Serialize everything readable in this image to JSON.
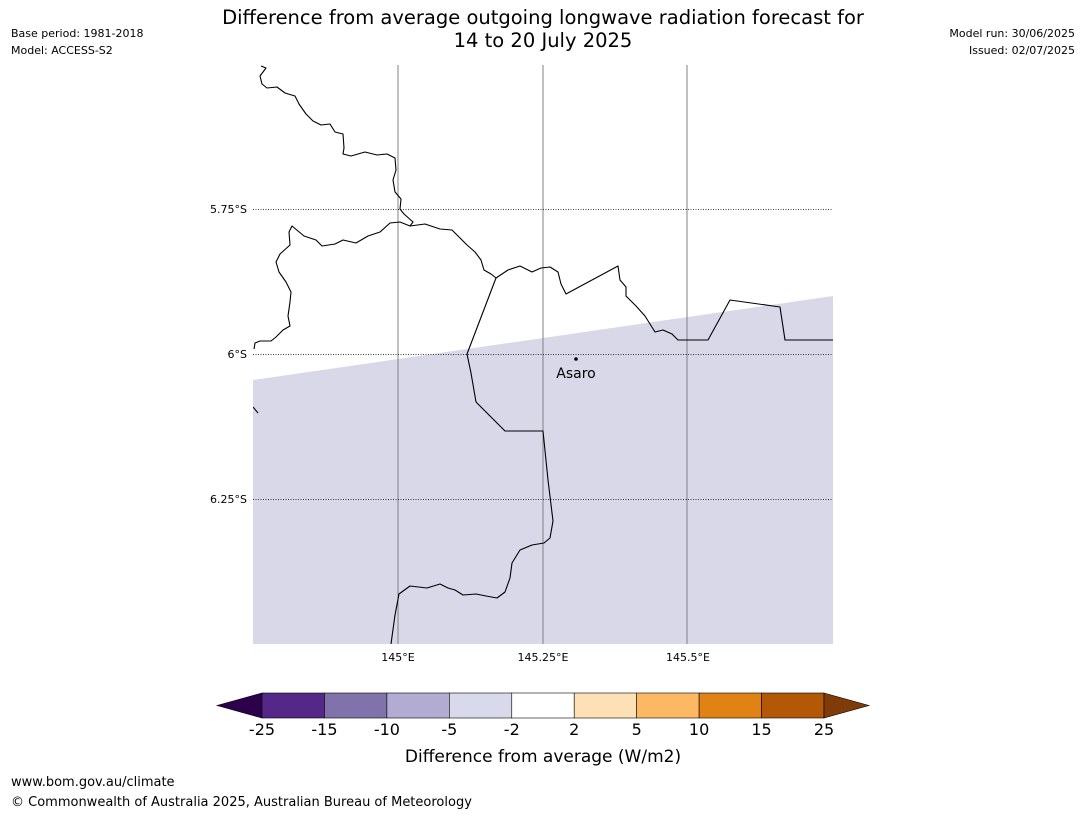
{
  "header": {
    "title_line1": "Difference from average outgoing longwave radiation forecast for",
    "title_line2": "14 to 20 July 2025",
    "base_period": "Base period: 1981-2018",
    "model": "Model: ACCESS-S2",
    "model_run": "Model run: 30/06/2025",
    "issued": "Issued: 02/07/2025"
  },
  "map": {
    "lat_labels": [
      "5.75°S",
      "6°S",
      "6.25°S"
    ],
    "lon_labels": [
      "145°E",
      "145.25°E",
      "145.5°E"
    ],
    "place_label": "Asaro",
    "forecast_fill_color": "#d8d8e9",
    "forecast_category": "-5 to -2"
  },
  "colorbar": {
    "label": "Difference from average (W/m2)",
    "ticks": [
      "-25",
      "-15",
      "-10",
      "-5",
      "-2",
      "2",
      "5",
      "10",
      "15",
      "25"
    ],
    "colors": [
      "#2d004b",
      "#542788",
      "#8073ac",
      "#b2abd2",
      "#d8daeb",
      "#ffffff",
      "#fee0b6",
      "#fdb863",
      "#e08214",
      "#b35806",
      "#7f3b08"
    ]
  },
  "footer": {
    "url": "www.bom.gov.au/climate",
    "copyright": "© Commonwealth of Australia 2025, Australian Bureau of Meteorology"
  }
}
